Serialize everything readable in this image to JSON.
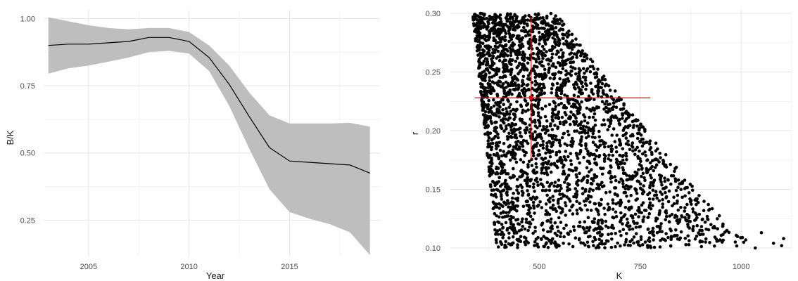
{
  "chart_data": [
    {
      "type": "line",
      "xlabel": "Year",
      "ylabel": "B/K",
      "xlim": [
        2002.8,
        2019.5
      ],
      "ylim": [
        0.115,
        1.03
      ],
      "x_ticks": [
        2005,
        2010,
        2015
      ],
      "x_tick_labels": [
        "2005",
        "2010",
        "2015"
      ],
      "y_ticks": [
        0.25,
        0.5,
        0.75,
        1.0
      ],
      "y_tick_labels": [
        "0.25",
        "0.50",
        "0.75",
        "1.00"
      ],
      "grid": true,
      "series": [
        {
          "x": [
            2003,
            2004,
            2005,
            2006,
            2007,
            2008,
            2009,
            2010,
            2011,
            2012,
            2013,
            2014,
            2015,
            2016,
            2017,
            2018,
            2019
          ],
          "y": [
            0.9,
            0.905,
            0.905,
            0.91,
            0.915,
            0.93,
            0.93,
            0.915,
            0.855,
            0.755,
            0.635,
            0.52,
            0.47,
            0.465,
            0.46,
            0.455,
            0.425
          ],
          "lower": [
            0.795,
            0.815,
            0.825,
            0.84,
            0.855,
            0.875,
            0.88,
            0.87,
            0.805,
            0.675,
            0.515,
            0.365,
            0.28,
            0.255,
            0.235,
            0.205,
            0.12
          ],
          "upper": [
            1.005,
            0.99,
            0.975,
            0.965,
            0.96,
            0.965,
            0.965,
            0.95,
            0.9,
            0.825,
            0.725,
            0.64,
            0.61,
            0.61,
            0.61,
            0.612,
            0.598
          ]
        }
      ],
      "line_color": "#000000",
      "band_color": "#bebebe"
    },
    {
      "type": "scatter",
      "xlabel": "K",
      "ylabel": "r",
      "xlim": [
        280,
        1125
      ],
      "ylim": [
        0.097,
        0.303
      ],
      "x_ticks": [
        500,
        750,
        1000
      ],
      "x_tick_labels": [
        "500",
        "750",
        "1000"
      ],
      "y_ticks": [
        0.1,
        0.15,
        0.2,
        0.25,
        0.3
      ],
      "y_tick_labels": [
        "0.10",
        "0.15",
        "0.20",
        "0.25",
        "0.30"
      ],
      "grid": true,
      "point_color": "#000000",
      "point_count": 3000,
      "point_distribution": {
        "r_range": [
          0.1,
          0.3
        ],
        "k_min_at_r_high": 335,
        "k_min_at_r_low": 395,
        "k_max_at_r_high": 545,
        "k_max_at_r_low": 1040,
        "outliers": [
          [
            1080,
            0.104
          ],
          [
            1100,
            0.102
          ],
          [
            1105,
            0.108
          ],
          [
            1035,
            0.1
          ],
          [
            1050,
            0.113
          ]
        ]
      },
      "reference": {
        "color": "#ff0000",
        "center": [
          480,
          0.228
        ],
        "k_range": [
          340,
          775
        ],
        "r_range": [
          0.175,
          0.297
        ]
      }
    }
  ]
}
